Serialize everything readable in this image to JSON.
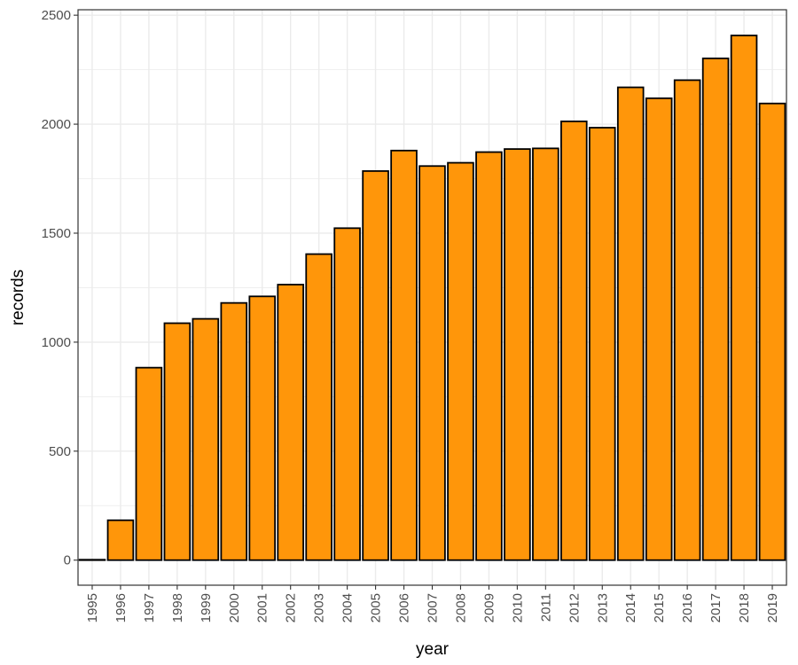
{
  "chart_data": {
    "type": "bar",
    "xlabel": "year",
    "ylabel": "records",
    "categories": [
      "1995",
      "1996",
      "1997",
      "1998",
      "1999",
      "2000",
      "2001",
      "2002",
      "2003",
      "2004",
      "2005",
      "2006",
      "2007",
      "2008",
      "2009",
      "2010",
      "2011",
      "2012",
      "2013",
      "2014",
      "2015",
      "2016",
      "2017",
      "2018",
      "2019"
    ],
    "values": [
      2,
      183,
      883,
      1087,
      1107,
      1180,
      1210,
      1264,
      1404,
      1523,
      1785,
      1879,
      1808,
      1823,
      1872,
      1886,
      1889,
      2013,
      1984,
      2169,
      2119,
      2202,
      2302,
      2407,
      2095
    ],
    "ylim": [
      -115,
      2525
    ],
    "yticks": [
      0,
      500,
      1000,
      1500,
      2000,
      2500
    ],
    "grid": true,
    "legend": "none",
    "colors": {
      "bar_fill": "#FF960A",
      "bar_stroke": "#000000",
      "grid": "#EBEBEB",
      "panel_border": "#333333"
    }
  }
}
